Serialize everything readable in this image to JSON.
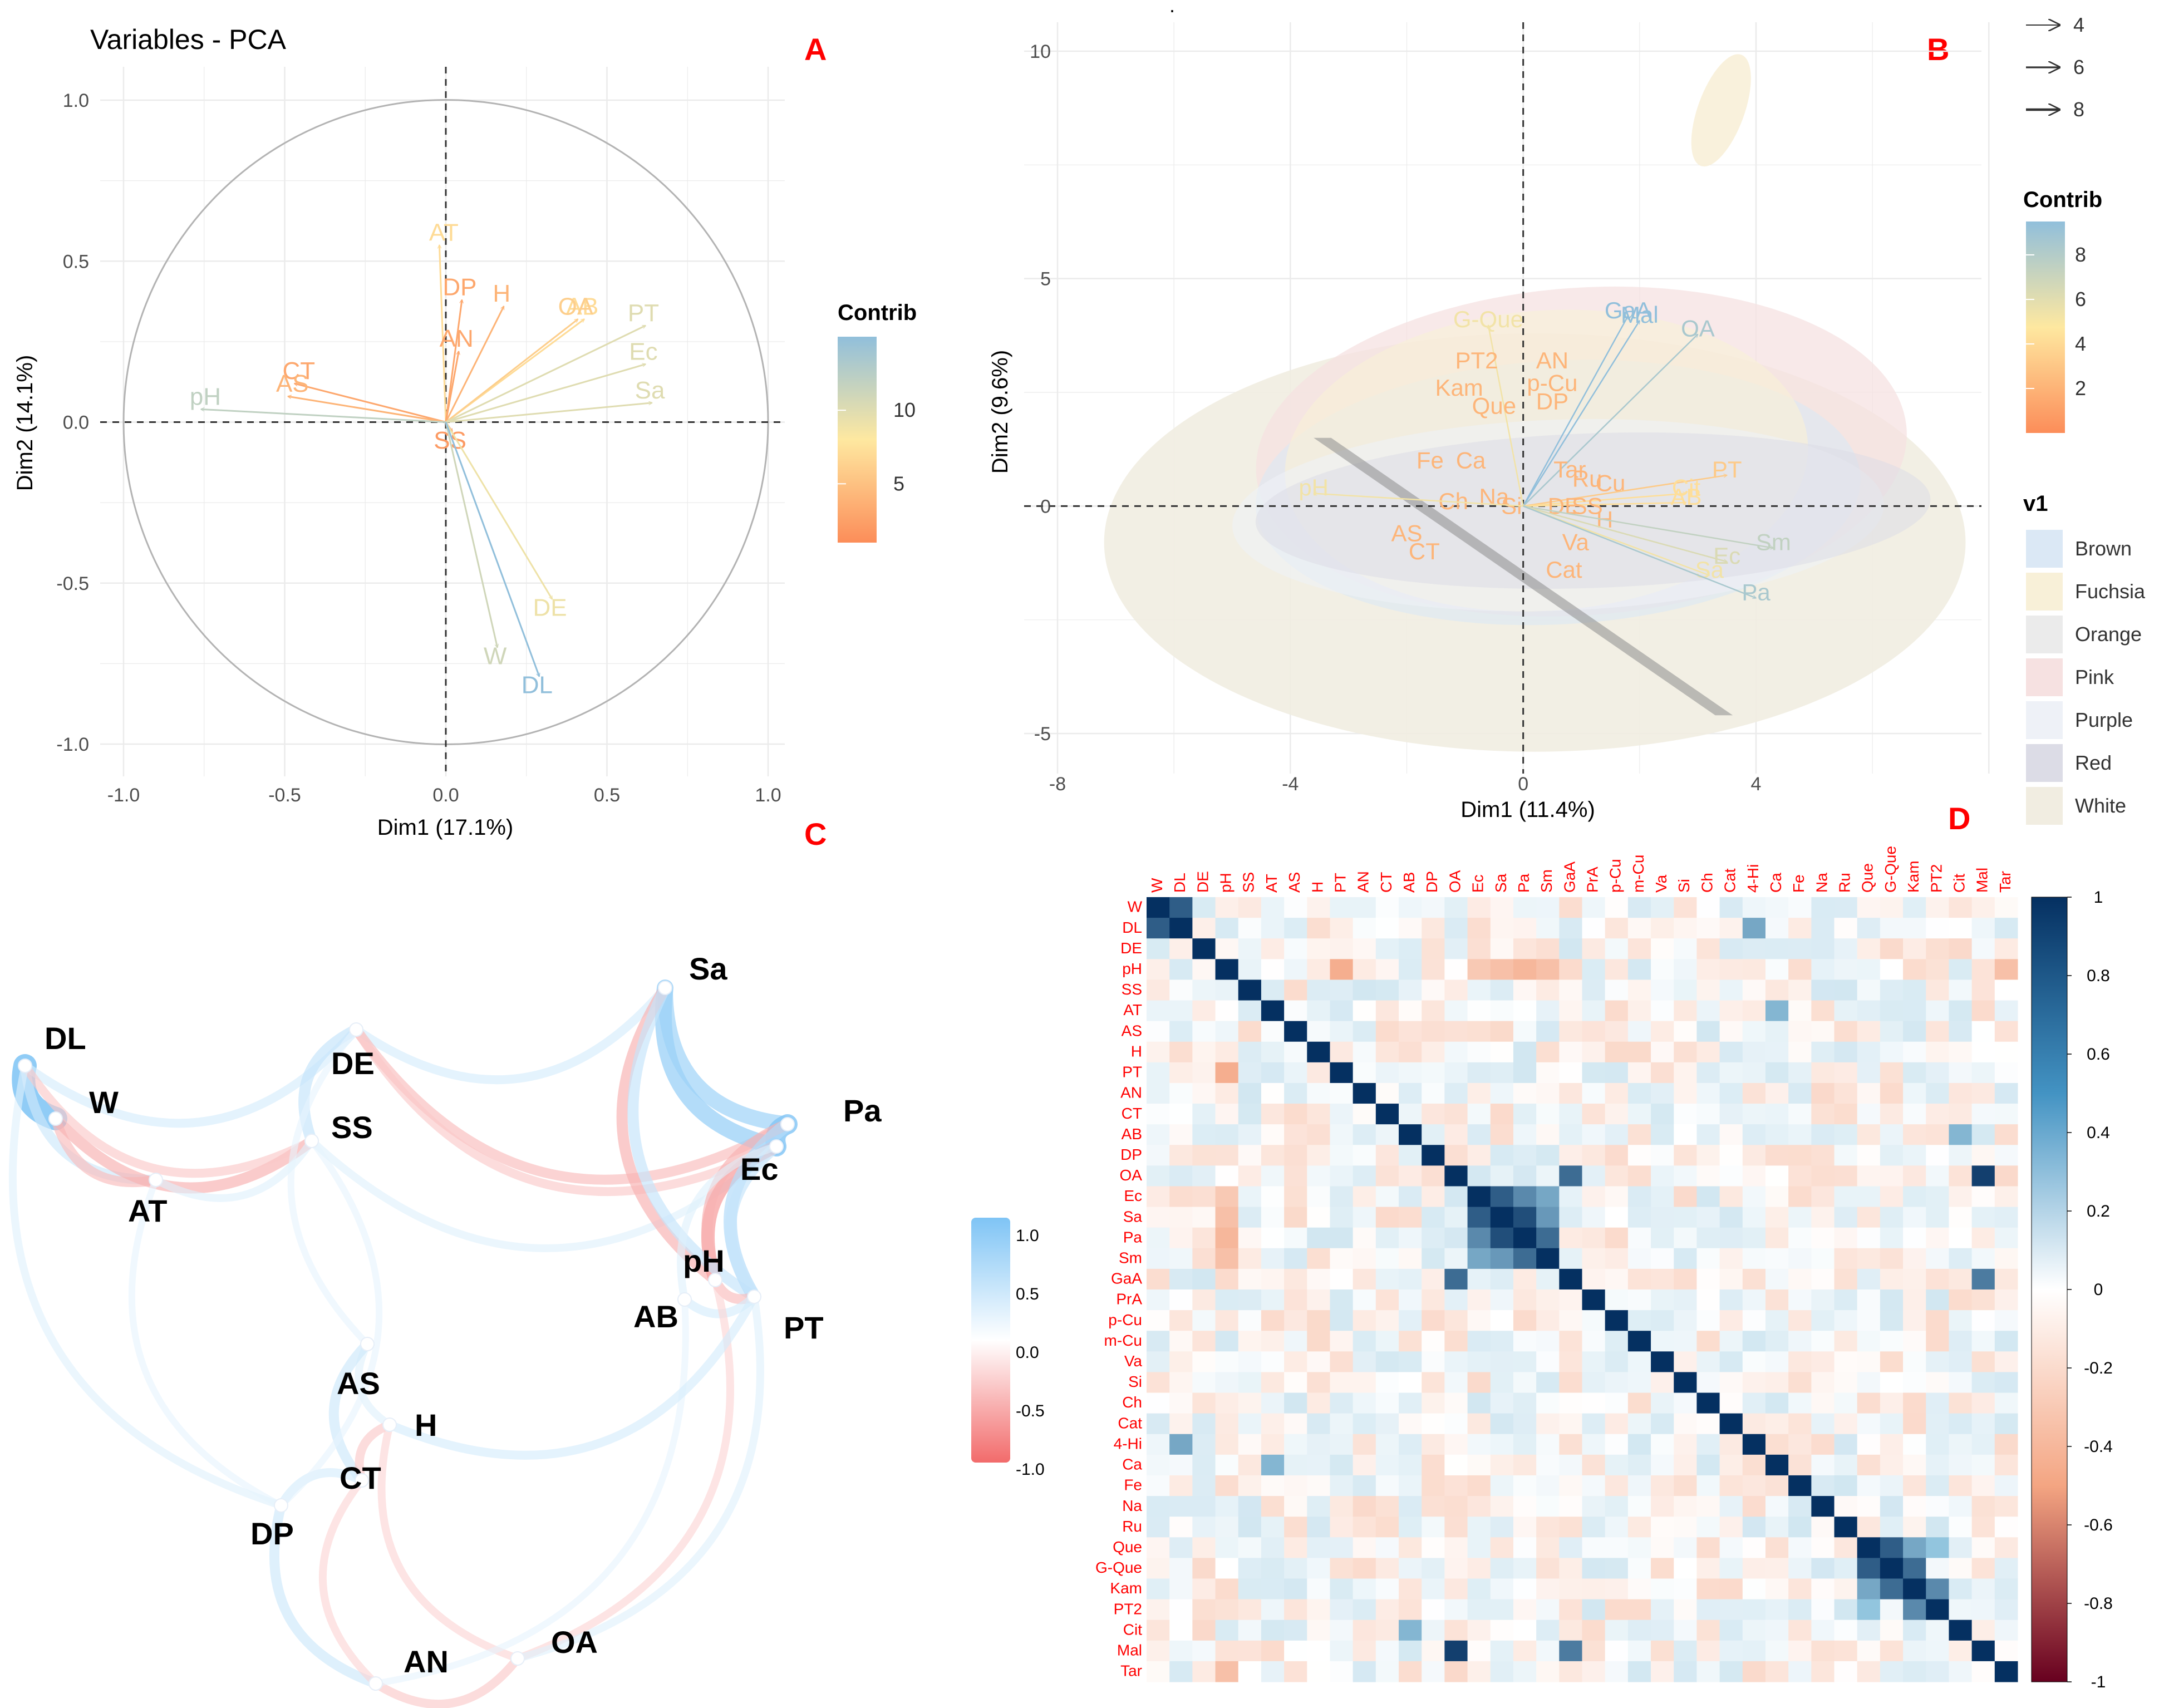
{
  "chart_data": [
    {
      "panel": "A",
      "type": "scatter",
      "title": "Variables - PCA",
      "xlabel": "Dim1 (17.1%)",
      "ylabel": "Dim2 (14.1%)",
      "xlim": [
        -1.0,
        1.0
      ],
      "ylim": [
        -1.0,
        1.0
      ],
      "xticks": [
        "-1.0",
        "-0.5",
        "0.0",
        "0.5",
        "1.0"
      ],
      "yticks": [
        "-1.0",
        "-0.5",
        "0.0",
        "0.5",
        "1.0"
      ],
      "legend_title": "Contrib",
      "legend_ticks": [
        "5",
        "10"
      ],
      "arrows": [
        {
          "name": "AT",
          "x": -0.02,
          "y": 0.55,
          "c": 6
        },
        {
          "name": "DP",
          "x": 0.05,
          "y": 0.38,
          "c": 2
        },
        {
          "name": "H",
          "x": 0.18,
          "y": 0.36,
          "c": 3
        },
        {
          "name": "AN",
          "x": 0.04,
          "y": 0.22,
          "c": 2
        },
        {
          "name": "AB",
          "x": 0.43,
          "y": 0.32,
          "c": 6
        },
        {
          "name": "OA",
          "x": 0.41,
          "y": 0.32,
          "c": 5
        },
        {
          "name": "PT",
          "x": 0.62,
          "y": 0.3,
          "c": 9
        },
        {
          "name": "Ec",
          "x": 0.62,
          "y": 0.18,
          "c": 9
        },
        {
          "name": "Sa",
          "x": 0.64,
          "y": 0.06,
          "c": 9
        },
        {
          "name": "CT",
          "x": -0.47,
          "y": 0.12,
          "c": 2
        },
        {
          "name": "AS",
          "x": -0.49,
          "y": 0.08,
          "c": 3
        },
        {
          "name": "pH",
          "x": -0.76,
          "y": 0.04,
          "c": 11
        },
        {
          "name": "SS",
          "x": 0.02,
          "y": -0.03,
          "c": 1
        },
        {
          "name": "DE",
          "x": 0.33,
          "y": -0.55,
          "c": 8
        },
        {
          "name": "W",
          "x": 0.16,
          "y": -0.7,
          "c": 10
        },
        {
          "name": "DL",
          "x": 0.29,
          "y": -0.79,
          "c": 14
        }
      ]
    },
    {
      "panel": "B",
      "type": "scatter",
      "xlabel": "Dim1 (11.4%)",
      "ylabel": "Dim2 (9.6%)",
      "xlim": [
        -8.8,
        7.6
      ],
      "ylim": [
        -5.6,
        10.8
      ],
      "xticks": [
        "-8",
        "-4",
        "0",
        "4"
      ],
      "yticks": [
        "-5",
        "0",
        "5",
        "10"
      ],
      "size_legend": [
        "4",
        "6",
        "8"
      ],
      "legend_title": "Contrib",
      "legend_ticks": [
        "2",
        "4",
        "6",
        "8"
      ],
      "group_legend_title": "v1",
      "groups": [
        {
          "name": "Brown",
          "color": "#dbe8f5"
        },
        {
          "name": "Fuchsia",
          "color": "#f8f0d8"
        },
        {
          "name": "Orange",
          "color": "#ebebeb"
        },
        {
          "name": "Pink",
          "color": "#f6e1e1"
        },
        {
          "name": "Purple",
          "color": "#eef1f7"
        },
        {
          "name": "Red",
          "color": "#dcdce6"
        },
        {
          "name": "White",
          "color": "#f1ede1"
        }
      ],
      "labels": [
        {
          "name": "GaA",
          "x": 1.8,
          "y": 4.3,
          "c": 9
        },
        {
          "name": "Mal",
          "x": 2.0,
          "y": 4.2,
          "c": 9
        },
        {
          "name": "OA",
          "x": 3.0,
          "y": 3.9,
          "c": 8
        },
        {
          "name": "G-Que",
          "x": -0.6,
          "y": 4.1,
          "c": 5
        },
        {
          "name": "AN",
          "x": 0.5,
          "y": 3.2,
          "c": 2
        },
        {
          "name": "PT2",
          "x": -0.8,
          "y": 3.2,
          "c": 2
        },
        {
          "name": "p-Cu",
          "x": 0.5,
          "y": 2.7,
          "c": 2
        },
        {
          "name": "Kam",
          "x": -1.1,
          "y": 2.6,
          "c": 2
        },
        {
          "name": "Que",
          "x": -0.5,
          "y": 2.2,
          "c": 2
        },
        {
          "name": "DP",
          "x": 0.5,
          "y": 2.3,
          "c": 2
        },
        {
          "name": "Fe",
          "x": -1.6,
          "y": 1.0,
          "c": 2
        },
        {
          "name": "Ca",
          "x": -0.9,
          "y": 1.0,
          "c": 2
        },
        {
          "name": "Tar",
          "x": 0.8,
          "y": 0.8,
          "c": 2
        },
        {
          "name": "Ru",
          "x": 1.1,
          "y": 0.6,
          "c": 2
        },
        {
          "name": "Cu",
          "x": 1.5,
          "y": 0.5,
          "c": 2
        },
        {
          "name": "PT",
          "x": 3.5,
          "y": 0.8,
          "c": 3
        },
        {
          "name": "Cit",
          "x": 2.8,
          "y": 0.4,
          "c": 4
        },
        {
          "name": "AB",
          "x": 2.8,
          "y": 0.2,
          "c": 4
        },
        {
          "name": "Ch",
          "x": -1.2,
          "y": 0.1,
          "c": 2
        },
        {
          "name": "Na",
          "x": -0.5,
          "y": 0.2,
          "c": 2
        },
        {
          "name": "Si",
          "x": -0.2,
          "y": 0.0,
          "c": 2
        },
        {
          "name": "DE",
          "x": 0.7,
          "y": 0.0,
          "c": 2
        },
        {
          "name": "SS",
          "x": 1.1,
          "y": 0.0,
          "c": 2
        },
        {
          "name": "H",
          "x": 1.4,
          "y": -0.3,
          "c": 2
        },
        {
          "name": "Va",
          "x": 0.9,
          "y": -0.8,
          "c": 2
        },
        {
          "name": "Cat",
          "x": 0.7,
          "y": -1.4,
          "c": 2
        },
        {
          "name": "AS",
          "x": -2.0,
          "y": -0.6,
          "c": 2
        },
        {
          "name": "CT",
          "x": -1.7,
          "y": -1.0,
          "c": 2
        },
        {
          "name": "pH",
          "x": -3.6,
          "y": 0.4,
          "c": 5
        },
        {
          "name": "Sm",
          "x": 4.3,
          "y": -0.8,
          "c": 7
        },
        {
          "name": "Ec",
          "x": 3.5,
          "y": -1.1,
          "c": 6
        },
        {
          "name": "Sa",
          "x": 3.2,
          "y": -1.4,
          "c": 5
        },
        {
          "name": "Pa",
          "x": 4.0,
          "y": -1.9,
          "c": 8
        }
      ]
    },
    {
      "panel": "C",
      "type": "network",
      "legend_ticks": [
        "1.0",
        "0.5",
        "0.0",
        "-0.5",
        "-1.0"
      ],
      "nodes": [
        "DL",
        "W",
        "AT",
        "DE",
        "SS",
        "Sa",
        "Pa",
        "Ec",
        "pH",
        "AB",
        "PT",
        "AS",
        "H",
        "CT",
        "DP",
        "AN",
        "OA"
      ]
    },
    {
      "panel": "D",
      "type": "heatmap",
      "variables": [
        "W",
        "DL",
        "DE",
        "pH",
        "SS",
        "AT",
        "AS",
        "H",
        "PT",
        "AN",
        "CT",
        "AB",
        "DP",
        "OA",
        "Ec",
        "Sa",
        "Pa",
        "Sm",
        "GaA",
        "PrA",
        "p-Cu",
        "m-Cu",
        "Va",
        "Si",
        "Ch",
        "Cat",
        "4-Hi",
        "Ca",
        "Fe",
        "Na",
        "Ru",
        "Que",
        "G-Que",
        "Kam",
        "PT2",
        "Cit",
        "Mal",
        "Tar"
      ],
      "colorbar_ticks": [
        "1",
        "0.8",
        "0.6",
        "0.4",
        "0.2",
        "0",
        "-0.2",
        "-0.4",
        "-0.6",
        "-0.8",
        "-1"
      ],
      "highlights": [
        {
          "a": "W",
          "b": "DL",
          "r": 0.85
        },
        {
          "a": "OA",
          "b": "Mal",
          "r": 0.95
        },
        {
          "a": "OA",
          "b": "GaA",
          "r": 0.8
        },
        {
          "a": "GaA",
          "b": "Mal",
          "r": 0.75
        },
        {
          "a": "Ec",
          "b": "Sa",
          "r": 0.85
        },
        {
          "a": "Sa",
          "b": "Pa",
          "r": 0.9
        },
        {
          "a": "Pa",
          "b": "Sm",
          "r": 0.8
        },
        {
          "a": "Ec",
          "b": "Pa",
          "r": 0.7
        },
        {
          "a": "Ec",
          "b": "Sm",
          "r": 0.6
        },
        {
          "a": "Sa",
          "b": "Sm",
          "r": 0.65
        },
        {
          "a": "Que",
          "b": "G-Que",
          "r": 0.85
        },
        {
          "a": "G-Que",
          "b": "Kam",
          "r": 0.8
        },
        {
          "a": "Kam",
          "b": "PT2",
          "r": 0.7
        },
        {
          "a": "Que",
          "b": "Kam",
          "r": 0.6
        },
        {
          "a": "Que",
          "b": "PT2",
          "r": 0.5
        },
        {
          "a": "DL",
          "b": "4-Hi",
          "r": 0.6
        },
        {
          "a": "AT",
          "b": "Ca",
          "r": 0.55
        },
        {
          "a": "AB",
          "b": "Cit",
          "r": 0.55
        },
        {
          "a": "pH",
          "b": "PT",
          "r": -0.45
        },
        {
          "a": "pH",
          "b": "Pa",
          "r": -0.4
        },
        {
          "a": "pH",
          "b": "Sa",
          "r": -0.35
        },
        {
          "a": "pH",
          "b": "Sm",
          "r": -0.35
        },
        {
          "a": "pH",
          "b": "Ec",
          "r": -0.3
        },
        {
          "a": "pH",
          "b": "Tar",
          "r": -0.35
        }
      ]
    }
  ],
  "panel_labels": {
    "a": "A",
    "b": "B",
    "c": "C",
    "d": "D"
  }
}
